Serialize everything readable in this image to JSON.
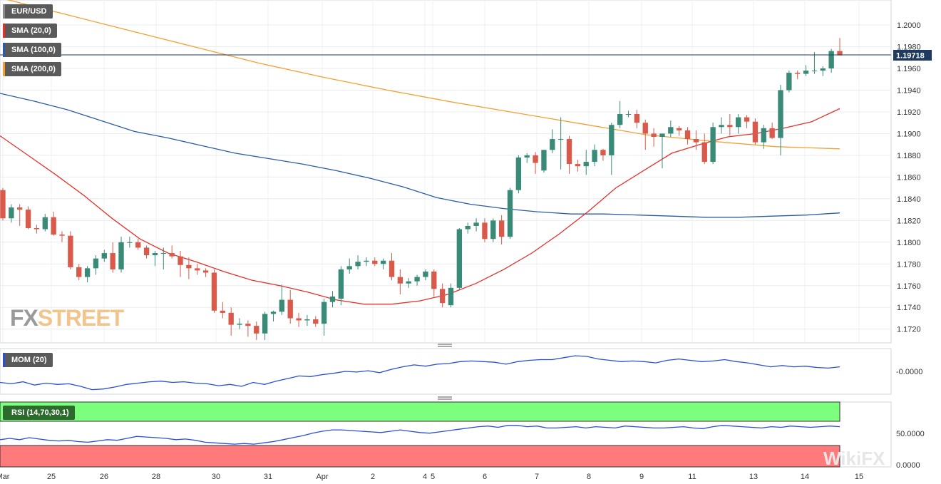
{
  "legend": {
    "symbol": "EUR/USD",
    "sma20": "SMA (20,0)",
    "sma100": "SMA (100,0)",
    "sma200": "SMA (200,0)",
    "mom": "MOM (20)",
    "rsi": "RSI (14,70,30,1)"
  },
  "watermark": {
    "fx": "FX",
    "street": "STREET",
    "wikifx": "WikiFX"
  },
  "colors": {
    "up": "#3a8a78",
    "down": "#d9594a",
    "sma20": "#e8302a",
    "sma100": "#2a5caa",
    "sma200": "#f5a030",
    "price_line": "#1f3a60",
    "price_tag": "#1f3a60",
    "rsi_over": "#7cff7c",
    "rsi_under": "#ff7b7b",
    "mom_line": "#2a4fd6"
  },
  "chart_data": {
    "type": "candlestick",
    "symbol": "EUR/USD",
    "price_axis": [
      "1.2000",
      "1.1980",
      "1.1960",
      "1.1940",
      "1.1920",
      "1.1900",
      "1.1880",
      "1.1860",
      "1.1840",
      "1.1820",
      "1.1800",
      "1.1780",
      "1.1760",
      "1.1740",
      "1.1720"
    ],
    "ylim": [
      1.1708,
      1.2023
    ],
    "current_price": "1.19718",
    "x_labels": [
      "Mar",
      "25",
      "26",
      "28",
      "30",
      "31",
      "Apr",
      "2",
      "4",
      "5",
      "6",
      "7",
      "8",
      "9",
      "11",
      "13",
      "14",
      "15"
    ],
    "candles": [
      [
        1.1848,
        1.185,
        1.182,
        1.1822
      ],
      [
        1.1822,
        1.1835,
        1.1818,
        1.1832
      ],
      [
        1.1832,
        1.1835,
        1.1815,
        1.183
      ],
      [
        1.183,
        1.1833,
        1.1812,
        1.1813
      ],
      [
        1.1813,
        1.1816,
        1.1808,
        1.1812
      ],
      [
        1.1812,
        1.1826,
        1.181,
        1.1823
      ],
      [
        1.1823,
        1.1828,
        1.1806,
        1.1807
      ],
      [
        1.1807,
        1.181,
        1.18,
        1.1806
      ],
      [
        1.1806,
        1.181,
        1.1775,
        1.1777
      ],
      [
        1.1777,
        1.178,
        1.1765,
        1.1768
      ],
      [
        1.1768,
        1.1778,
        1.1763,
        1.1776
      ],
      [
        1.1776,
        1.1788,
        1.177,
        1.1785
      ],
      [
        1.1785,
        1.1793,
        1.1782,
        1.179
      ],
      [
        1.179,
        1.18,
        1.1772,
        1.1775
      ],
      [
        1.1775,
        1.1805,
        1.1772,
        1.18
      ],
      [
        1.18,
        1.1805,
        1.1795,
        1.18
      ],
      [
        1.18,
        1.1803,
        1.1793,
        1.1795
      ],
      [
        1.1795,
        1.1797,
        1.1785,
        1.1788
      ],
      [
        1.1788,
        1.1792,
        1.1778,
        1.179
      ],
      [
        1.179,
        1.1795,
        1.1775,
        1.179
      ],
      [
        1.179,
        1.1797,
        1.1785,
        1.1787
      ],
      [
        1.1787,
        1.1792,
        1.1768,
        1.1779
      ],
      [
        1.1779,
        1.1786,
        1.1766,
        1.1776
      ],
      [
        1.1776,
        1.178,
        1.177,
        1.1774
      ],
      [
        1.1774,
        1.1776,
        1.1768,
        1.1772
      ],
      [
        1.1772,
        1.1775,
        1.1735,
        1.1737
      ],
      [
        1.1737,
        1.1745,
        1.173,
        1.1735
      ],
      [
        1.1735,
        1.174,
        1.1714,
        1.1724
      ],
      [
        1.1724,
        1.173,
        1.172,
        1.1725
      ],
      [
        1.1725,
        1.1728,
        1.1713,
        1.1723
      ],
      [
        1.1723,
        1.1727,
        1.171,
        1.1716
      ],
      [
        1.1716,
        1.1736,
        1.171,
        1.1734
      ],
      [
        1.1734,
        1.1737,
        1.1727,
        1.1736
      ],
      [
        1.1736,
        1.1761,
        1.1733,
        1.1747
      ],
      [
        1.1747,
        1.1756,
        1.1725,
        1.173
      ],
      [
        1.173,
        1.1735,
        1.1722,
        1.1728
      ],
      [
        1.1728,
        1.1733,
        1.1723,
        1.1729
      ],
      [
        1.1729,
        1.1732,
        1.1722,
        1.1725
      ],
      [
        1.1725,
        1.1748,
        1.1714,
        1.1745
      ],
      [
        1.1745,
        1.1755,
        1.174,
        1.175
      ],
      [
        1.1748,
        1.1778,
        1.1742,
        1.1775
      ],
      [
        1.1775,
        1.1785,
        1.1771,
        1.1778
      ],
      [
        1.1778,
        1.1788,
        1.1775,
        1.1782
      ],
      [
        1.1782,
        1.1786,
        1.1778,
        1.1783
      ],
      [
        1.1783,
        1.1786,
        1.1778,
        1.178
      ],
      [
        1.178,
        1.1785,
        1.1775,
        1.1783
      ],
      [
        1.1783,
        1.179,
        1.1765,
        1.1768
      ],
      [
        1.1768,
        1.1775,
        1.1752,
        1.1762
      ],
      [
        1.1762,
        1.1767,
        1.1758,
        1.1764
      ],
      [
        1.1764,
        1.177,
        1.176,
        1.1768
      ],
      [
        1.1768,
        1.1775,
        1.1765,
        1.1773
      ],
      [
        1.1773,
        1.1775,
        1.175,
        1.1757
      ],
      [
        1.1757,
        1.1762,
        1.174,
        1.1744
      ],
      [
        1.1742,
        1.1762,
        1.174,
        1.1758
      ],
      [
        1.1758,
        1.1813,
        1.1756,
        1.1812
      ],
      [
        1.1812,
        1.1818,
        1.1808,
        1.1815
      ],
      [
        1.1815,
        1.1822,
        1.181,
        1.1818
      ],
      [
        1.1818,
        1.1822,
        1.18,
        1.1803
      ],
      [
        1.1803,
        1.1822,
        1.18,
        1.182
      ],
      [
        1.182,
        1.1825,
        1.1798,
        1.1805
      ],
      [
        1.1805,
        1.185,
        1.1803,
        1.1848
      ],
      [
        1.1848,
        1.188,
        1.1845,
        1.1878
      ],
      [
        1.1878,
        1.1882,
        1.1873,
        1.188
      ],
      [
        1.188,
        1.1883,
        1.1863,
        1.1873
      ],
      [
        1.1866,
        1.1885,
        1.1864,
        1.1885
      ],
      [
        1.1885,
        1.1904,
        1.1882,
        1.1895
      ],
      [
        1.1895,
        1.1915,
        1.1867,
        1.1895
      ],
      [
        1.1895,
        1.1898,
        1.1863,
        1.1872
      ],
      [
        1.1872,
        1.1876,
        1.1865,
        1.187
      ],
      [
        1.187,
        1.1885,
        1.1862,
        1.1874
      ],
      [
        1.1874,
        1.189,
        1.187,
        1.1885
      ],
      [
        1.1885,
        1.1886,
        1.1875,
        1.188
      ],
      [
        1.188,
        1.191,
        1.1862,
        1.1908
      ],
      [
        1.1908,
        1.193,
        1.1905,
        1.1918
      ],
      [
        1.1918,
        1.1921,
        1.1915,
        1.1918
      ],
      [
        1.1918,
        1.1922,
        1.1905,
        1.191
      ],
      [
        1.191,
        1.1913,
        1.1885,
        1.19
      ],
      [
        1.19,
        1.1905,
        1.1888,
        1.1897
      ],
      [
        1.1897,
        1.19,
        1.1868,
        1.19
      ],
      [
        1.19,
        1.1912,
        1.1897,
        1.1906
      ],
      [
        1.1905,
        1.1907,
        1.1898,
        1.1903
      ],
      [
        1.1903,
        1.1906,
        1.189,
        1.1895
      ],
      [
        1.1895,
        1.1903,
        1.1885,
        1.1892
      ],
      [
        1.1892,
        1.19,
        1.1872,
        1.1874
      ],
      [
        1.1874,
        1.191,
        1.1872,
        1.1906
      ],
      [
        1.1906,
        1.1915,
        1.19,
        1.1908
      ],
      [
        1.1908,
        1.1918,
        1.1898,
        1.1906
      ],
      [
        1.1906,
        1.1918,
        1.19,
        1.1915
      ],
      [
        1.1915,
        1.1917,
        1.1905,
        1.1911
      ],
      [
        1.1911,
        1.1914,
        1.189,
        1.1892
      ],
      [
        1.1892,
        1.1908,
        1.1886,
        1.1905
      ],
      [
        1.1905,
        1.191,
        1.1895,
        1.1896
      ],
      [
        1.1896,
        1.1945,
        1.188,
        1.194
      ],
      [
        1.194,
        1.1958,
        1.1938,
        1.1956
      ],
      [
        1.1956,
        1.1958,
        1.195,
        1.1955
      ],
      [
        1.1955,
        1.1963,
        1.1953,
        1.1958
      ],
      [
        1.1958,
        1.1975,
        1.1955,
        1.1958
      ],
      [
        1.1958,
        1.1962,
        1.1953,
        1.196
      ],
      [
        1.196,
        1.1978,
        1.1956,
        1.1976
      ],
      [
        1.1976,
        1.1988,
        1.1972,
        1.1972
      ]
    ],
    "sma20": [
      1.1898,
      1.188,
      1.1862,
      1.1843,
      1.1822,
      1.1803,
      1.179,
      1.1782,
      1.1773,
      1.1765,
      1.176,
      1.1754,
      1.1747,
      1.1743,
      1.1743,
      1.1746,
      1.1752,
      1.1762,
      1.1775,
      1.179,
      1.1808,
      1.1828,
      1.185,
      1.1866,
      1.1882,
      1.189,
      1.1897,
      1.19,
      1.1905,
      1.1911,
      1.1923
    ],
    "sma100": [
      1.1937,
      1.193,
      1.1922,
      1.1912,
      1.1902,
      1.1896,
      1.1889,
      1.1882,
      1.1877,
      1.1872,
      1.1866,
      1.1859,
      1.1851,
      1.1841,
      1.1835,
      1.1831,
      1.1828,
      1.1826,
      1.1826,
      1.1825,
      1.1824,
      1.1823,
      1.1823,
      1.1824,
      1.1825,
      1.1827
    ],
    "sma200": [
      1.2025,
      1.201,
      1.1995,
      1.198,
      1.1965,
      1.1952,
      1.194,
      1.1929,
      1.1919,
      1.1909,
      1.1899,
      1.1893,
      1.1888,
      1.1886
    ],
    "mom": [
      0.8,
      0.6,
      0.9,
      0.4,
      0.7,
      0.5,
      0.6,
      0.2,
      -0.3,
      -0.2,
      0.1,
      0.5,
      0.7,
      0.9,
      1.0,
      0.8,
      0.9,
      0.7,
      0.6,
      0.3,
      0.5,
      0.2,
      0.8,
      0.5,
      1.0,
      1.4,
      1.8,
      1.7,
      2.0,
      2.2,
      2.5,
      2.4,
      2.6,
      2.3,
      2.8,
      3.2,
      3.5,
      3.3,
      3.6,
      3.7,
      4.0,
      4.1,
      4.0,
      3.9,
      3.6,
      4.0,
      4.2,
      4.3,
      4.3,
      4.6,
      4.9,
      4.8,
      4.4,
      4.2,
      4.0,
      4.1,
      4.0,
      3.8,
      4.2,
      4.4,
      4.2,
      4.0,
      4.1,
      4.3,
      4.0,
      3.8,
      3.5,
      3.2,
      3.4,
      3.2,
      3.3,
      3.1,
      3.0,
      3.2
    ],
    "mom_label": "-0.0000",
    "rsi": [
      42,
      44,
      42,
      45,
      43,
      41,
      40,
      41,
      39,
      38,
      40,
      42,
      41,
      44,
      47,
      46,
      45,
      44,
      42,
      43,
      41,
      38,
      37,
      36,
      35,
      36,
      35,
      37,
      39,
      42,
      45,
      48,
      52,
      55,
      57,
      57,
      56,
      55,
      54,
      53,
      55,
      57,
      55,
      53,
      52,
      54,
      56,
      58,
      60,
      62,
      63,
      61,
      64,
      64,
      62,
      63,
      60,
      60,
      61,
      62,
      60,
      62,
      61,
      60,
      63,
      62,
      61,
      60,
      60,
      61,
      62,
      60,
      59,
      62,
      64,
      63,
      62,
      61,
      60,
      62,
      61,
      63,
      62,
      61,
      62,
      63,
      62
    ],
    "rsi_levels": {
      "over": 70,
      "under": 30,
      "mid": 50,
      "top": 100,
      "bottom": 0
    },
    "rsi_axis": [
      "50.0000",
      "0.0000"
    ]
  }
}
